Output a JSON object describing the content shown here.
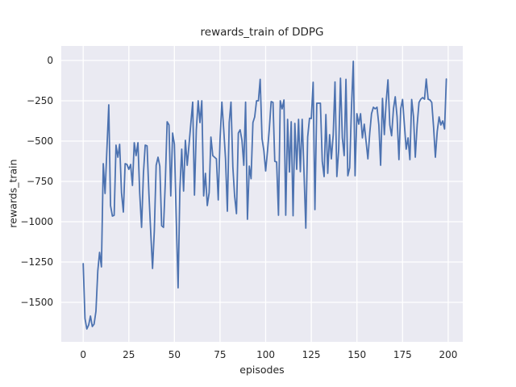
{
  "colors": {
    "figure_bg": "#ffffff",
    "axes_bg": "#eaeaf2",
    "grid": "#ffffff",
    "text": "#262626",
    "line": "#4c72b0"
  },
  "chart_data": {
    "type": "line",
    "title": "rewards_train of DDPG",
    "xlabel": "episodes",
    "ylabel": "rewards_train",
    "grid": true,
    "legend_position": "none",
    "line_color": "#4c72b0",
    "xlim": [
      -12,
      208
    ],
    "ylim": [
      -1745,
      90
    ],
    "xticks": {
      "values": [
        0,
        25,
        50,
        75,
        100,
        125,
        150,
        175,
        200
      ],
      "labels": [
        "0",
        "25",
        "50",
        "75",
        "100",
        "125",
        "150",
        "175",
        "200"
      ]
    },
    "yticks": {
      "values": [
        0,
        -250,
        -500,
        -750,
        -1000,
        -1250,
        -1500
      ],
      "labels": [
        "0",
        "−250",
        "−500",
        "−750",
        "−1000",
        "−1250",
        "−1500"
      ]
    },
    "x_start": 0,
    "x_step": 1,
    "values": [
      -1260,
      -1600,
      -1665,
      -1640,
      -1585,
      -1650,
      -1635,
      -1555,
      -1305,
      -1190,
      -1280,
      -640,
      -825,
      -550,
      -275,
      -900,
      -965,
      -960,
      -525,
      -600,
      -520,
      -820,
      -940,
      -640,
      -645,
      -675,
      -645,
      -775,
      -510,
      -590,
      -510,
      -825,
      -1035,
      -700,
      -525,
      -530,
      -825,
      -1060,
      -1290,
      -1058,
      -650,
      -600,
      -655,
      -1025,
      -1035,
      -760,
      -380,
      -400,
      -840,
      -450,
      -520,
      -980,
      -1410,
      -800,
      -550,
      -810,
      -495,
      -650,
      -520,
      -390,
      -258,
      -835,
      -430,
      -250,
      -385,
      -250,
      -840,
      -700,
      -900,
      -820,
      -475,
      -590,
      -600,
      -610,
      -865,
      -490,
      -258,
      -430,
      -608,
      -935,
      -385,
      -258,
      -660,
      -840,
      -950,
      -450,
      -430,
      -495,
      -650,
      -258,
      -985,
      -655,
      -733,
      -385,
      -350,
      -250,
      -250,
      -117,
      -485,
      -560,
      -685,
      -560,
      -420,
      -255,
      -260,
      -625,
      -630,
      -960,
      -250,
      -300,
      -245,
      -960,
      -365,
      -692,
      -380,
      -963,
      -390,
      -675,
      -365,
      -690,
      -365,
      -700,
      -1040,
      -475,
      -358,
      -360,
      -135,
      -925,
      -265,
      -265,
      -265,
      -625,
      -720,
      -335,
      -700,
      -460,
      -610,
      -460,
      -133,
      -720,
      -550,
      -110,
      -480,
      -590,
      -117,
      -715,
      -665,
      -300,
      -5,
      -715,
      -330,
      -395,
      -330,
      -480,
      -395,
      -500,
      -610,
      -450,
      -330,
      -290,
      -300,
      -290,
      -400,
      -650,
      -235,
      -460,
      -260,
      -120,
      -400,
      -467,
      -300,
      -225,
      -350,
      -615,
      -300,
      -242,
      -400,
      -550,
      -480,
      -615,
      -242,
      -350,
      -600,
      -400,
      -260,
      -240,
      -230,
      -240,
      -115,
      -240,
      -245,
      -260,
      -415,
      -600,
      -440,
      -350,
      -400,
      -375,
      -425,
      -115
    ]
  }
}
